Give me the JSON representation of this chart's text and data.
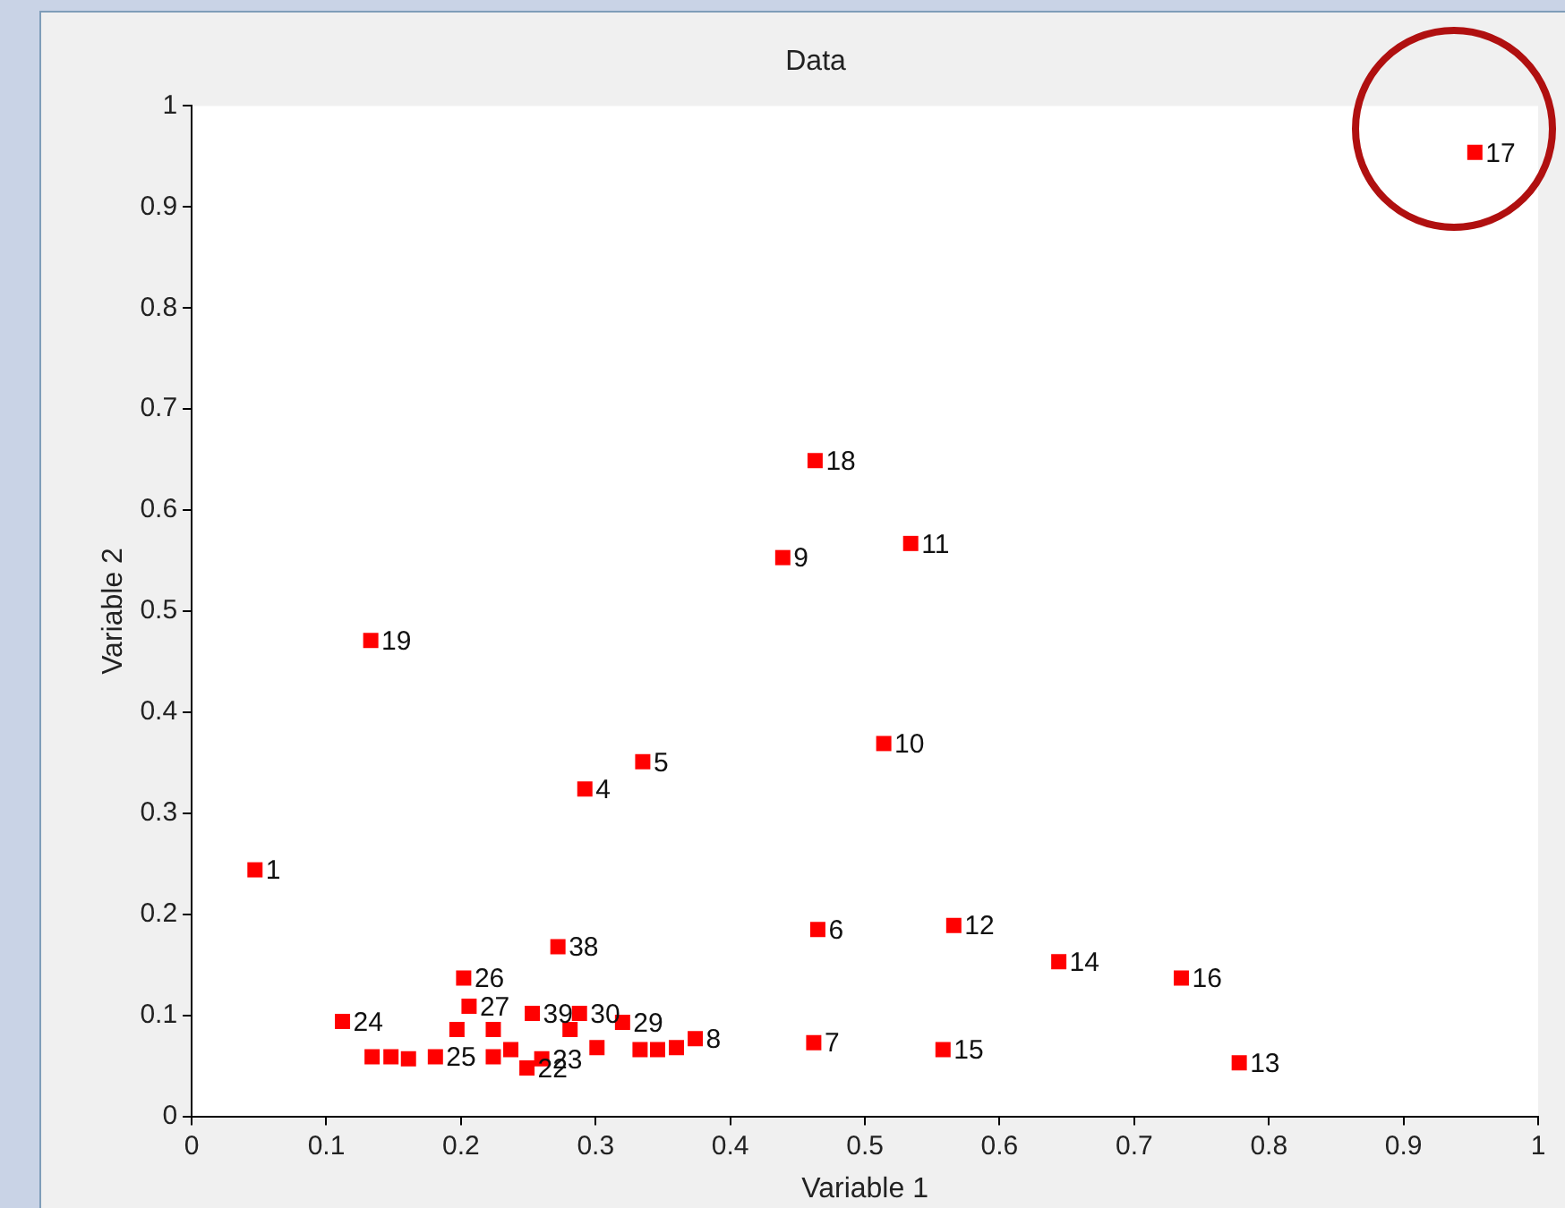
{
  "chart_data": {
    "type": "scatter",
    "title": "Data",
    "xlabel": "Variable 1",
    "ylabel": "Variable 2",
    "xlim": [
      0,
      1
    ],
    "ylim": [
      0,
      1
    ],
    "xticks": [
      0,
      0.1,
      0.2,
      0.3,
      0.4,
      0.5,
      0.6,
      0.7,
      0.8,
      0.9,
      1
    ],
    "yticks": [
      0,
      0.1,
      0.2,
      0.3,
      0.4,
      0.5,
      0.6,
      0.7,
      0.8,
      0.9,
      1
    ],
    "grid": false,
    "legend": false,
    "marker": "square",
    "series": [
      {
        "color": "#ff0000",
        "x": [
          0.953,
          0.463,
          0.534,
          0.439,
          0.133,
          0.514,
          0.335,
          0.292,
          0.047,
          0.465,
          0.566,
          0.644,
          0.735,
          0.272,
          0.202,
          0.112,
          0.462,
          0.558,
          0.778,
          0.206,
          0.134,
          0.148,
          0.161,
          0.181,
          0.197,
          0.224,
          0.224,
          0.237,
          0.249,
          0.26,
          0.253,
          0.288,
          0.281,
          0.301,
          0.32,
          0.333,
          0.346,
          0.36,
          0.374
        ],
        "values": [
          0.954,
          0.649,
          0.567,
          0.553,
          0.471,
          0.369,
          0.351,
          0.324,
          0.244,
          0.185,
          0.189,
          0.153,
          0.137,
          0.168,
          0.137,
          0.094,
          0.073,
          0.066,
          0.053,
          0.109,
          0.059,
          0.059,
          0.057,
          0.059,
          0.086,
          0.086,
          0.059,
          0.066,
          0.048,
          0.057,
          0.102,
          0.102,
          0.086,
          0.068,
          0.093,
          0.066,
          0.066,
          0.068,
          0.077
        ]
      }
    ],
    "annotations": [
      {
        "text": "17",
        "x": 0.953,
        "y": 0.954
      },
      {
        "text": "18",
        "x": 0.463,
        "y": 0.649
      },
      {
        "text": "11",
        "x": 0.534,
        "y": 0.567
      },
      {
        "text": "9",
        "x": 0.439,
        "y": 0.553
      },
      {
        "text": "19",
        "x": 0.133,
        "y": 0.471
      },
      {
        "text": "10",
        "x": 0.514,
        "y": 0.369
      },
      {
        "text": "5",
        "x": 0.335,
        "y": 0.351
      },
      {
        "text": "4",
        "x": 0.292,
        "y": 0.324
      },
      {
        "text": "1",
        "x": 0.047,
        "y": 0.244
      },
      {
        "text": "6",
        "x": 0.465,
        "y": 0.185
      },
      {
        "text": "12",
        "x": 0.566,
        "y": 0.189
      },
      {
        "text": "14",
        "x": 0.644,
        "y": 0.153
      },
      {
        "text": "16",
        "x": 0.735,
        "y": 0.137
      },
      {
        "text": "38",
        "x": 0.272,
        "y": 0.168
      },
      {
        "text": "26",
        "x": 0.202,
        "y": 0.137
      },
      {
        "text": "24",
        "x": 0.112,
        "y": 0.094
      },
      {
        "text": "7",
        "x": 0.462,
        "y": 0.073
      },
      {
        "text": "15",
        "x": 0.558,
        "y": 0.066
      },
      {
        "text": "13",
        "x": 0.778,
        "y": 0.053
      },
      {
        "text": "27",
        "x": 0.206,
        "y": 0.109
      },
      {
        "text": "25",
        "x": 0.181,
        "y": 0.059
      },
      {
        "text": "22",
        "x": 0.249,
        "y": 0.048
      },
      {
        "text": "23",
        "x": 0.26,
        "y": 0.057
      },
      {
        "text": "39",
        "x": 0.253,
        "y": 0.102
      },
      {
        "text": "30",
        "x": 0.288,
        "y": 0.102
      },
      {
        "text": "29",
        "x": 0.32,
        "y": 0.093
      },
      {
        "text": "8",
        "x": 0.374,
        "y": 0.077
      }
    ]
  }
}
